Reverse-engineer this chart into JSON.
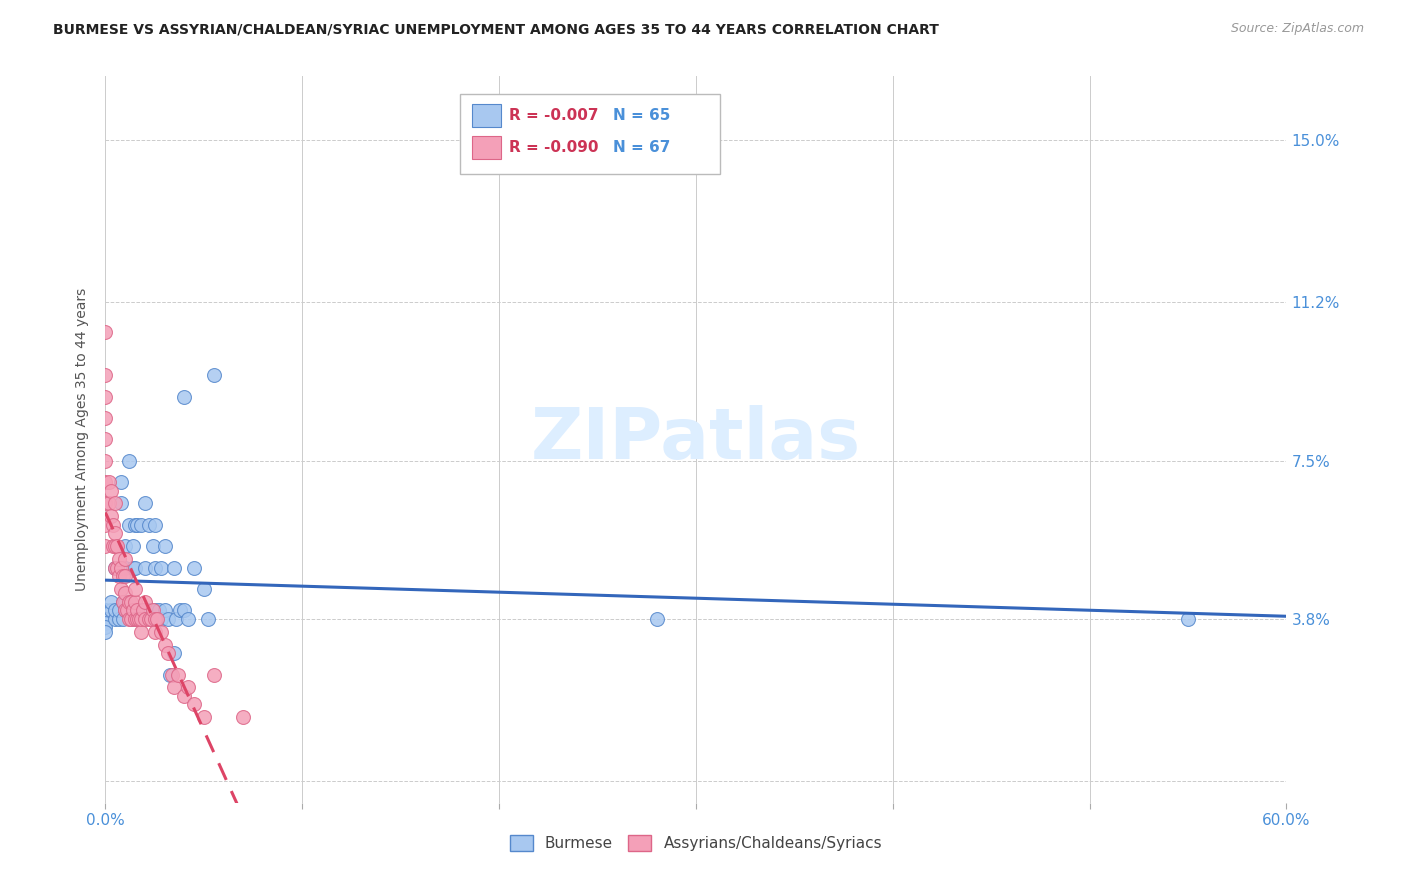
{
  "title": "BURMESE VS ASSYRIAN/CHALDEAN/SYRIAC UNEMPLOYMENT AMONG AGES 35 TO 44 YEARS CORRELATION CHART",
  "source": "Source: ZipAtlas.com",
  "ylabel": "Unemployment Among Ages 35 to 44 years",
  "xlim": [
    0.0,
    0.6
  ],
  "ylim": [
    -0.005,
    0.165
  ],
  "yticks": [
    0.0,
    0.038,
    0.075,
    0.112,
    0.15
  ],
  "ytick_labels": [
    "",
    "3.8%",
    "7.5%",
    "11.2%",
    "15.0%"
  ],
  "legend_r1": "R = -0.007",
  "legend_n1": "N = 65",
  "legend_r2": "R = -0.090",
  "legend_n2": "N = 67",
  "legend_label1": "Burmese",
  "legend_label2": "Assyrians/Chaldeans/Syriacs",
  "color_blue": "#a8c8f0",
  "color_pink": "#f4a0b8",
  "color_blue_dark": "#5588cc",
  "color_pink_dark": "#dd6688",
  "trendline_blue": "#3366bb",
  "trendline_pink": "#dd4466",
  "watermark_color": "#ddeeff",
  "burmese_x": [
    0.0,
    0.0,
    0.0,
    0.0,
    0.0,
    0.003,
    0.003,
    0.005,
    0.005,
    0.005,
    0.007,
    0.007,
    0.008,
    0.008,
    0.009,
    0.009,
    0.01,
    0.01,
    0.01,
    0.01,
    0.012,
    0.012,
    0.013,
    0.014,
    0.014,
    0.015,
    0.015,
    0.015,
    0.016,
    0.016,
    0.017,
    0.018,
    0.018,
    0.019,
    0.02,
    0.02,
    0.02,
    0.022,
    0.022,
    0.023,
    0.024,
    0.025,
    0.025,
    0.025,
    0.026,
    0.027,
    0.028,
    0.028,
    0.03,
    0.03,
    0.032,
    0.033,
    0.035,
    0.035,
    0.036,
    0.038,
    0.04,
    0.04,
    0.042,
    0.045,
    0.05,
    0.052,
    0.055,
    0.28,
    0.55
  ],
  "burmese_y": [
    0.04,
    0.038,
    0.037,
    0.036,
    0.035,
    0.04,
    0.042,
    0.038,
    0.04,
    0.05,
    0.038,
    0.04,
    0.065,
    0.07,
    0.038,
    0.042,
    0.04,
    0.042,
    0.05,
    0.055,
    0.06,
    0.075,
    0.038,
    0.05,
    0.055,
    0.038,
    0.05,
    0.06,
    0.04,
    0.06,
    0.038,
    0.04,
    0.06,
    0.038,
    0.04,
    0.05,
    0.065,
    0.04,
    0.06,
    0.038,
    0.055,
    0.04,
    0.05,
    0.06,
    0.038,
    0.04,
    0.038,
    0.05,
    0.04,
    0.055,
    0.038,
    0.025,
    0.03,
    0.05,
    0.038,
    0.04,
    0.04,
    0.09,
    0.038,
    0.05,
    0.045,
    0.038,
    0.095,
    0.038,
    0.038
  ],
  "assyrian_x": [
    0.0,
    0.0,
    0.0,
    0.0,
    0.0,
    0.0,
    0.0,
    0.0,
    0.0,
    0.0,
    0.002,
    0.002,
    0.003,
    0.003,
    0.004,
    0.004,
    0.005,
    0.005,
    0.005,
    0.005,
    0.006,
    0.006,
    0.007,
    0.007,
    0.008,
    0.008,
    0.009,
    0.009,
    0.01,
    0.01,
    0.01,
    0.01,
    0.011,
    0.012,
    0.012,
    0.013,
    0.013,
    0.014,
    0.015,
    0.015,
    0.015,
    0.016,
    0.016,
    0.017,
    0.018,
    0.018,
    0.019,
    0.02,
    0.02,
    0.022,
    0.023,
    0.024,
    0.025,
    0.025,
    0.026,
    0.028,
    0.03,
    0.032,
    0.034,
    0.035,
    0.037,
    0.04,
    0.042,
    0.045,
    0.05,
    0.055,
    0.07
  ],
  "assyrian_y": [
    0.105,
    0.095,
    0.09,
    0.085,
    0.08,
    0.075,
    0.07,
    0.065,
    0.06,
    0.055,
    0.065,
    0.07,
    0.062,
    0.068,
    0.055,
    0.06,
    0.05,
    0.055,
    0.058,
    0.065,
    0.05,
    0.055,
    0.048,
    0.052,
    0.045,
    0.05,
    0.042,
    0.048,
    0.04,
    0.044,
    0.048,
    0.052,
    0.04,
    0.038,
    0.042,
    0.038,
    0.042,
    0.04,
    0.038,
    0.042,
    0.045,
    0.038,
    0.04,
    0.038,
    0.035,
    0.038,
    0.04,
    0.038,
    0.042,
    0.038,
    0.038,
    0.04,
    0.035,
    0.038,
    0.038,
    0.035,
    0.032,
    0.03,
    0.025,
    0.022,
    0.025,
    0.02,
    0.022,
    0.018,
    0.015,
    0.025,
    0.015
  ]
}
